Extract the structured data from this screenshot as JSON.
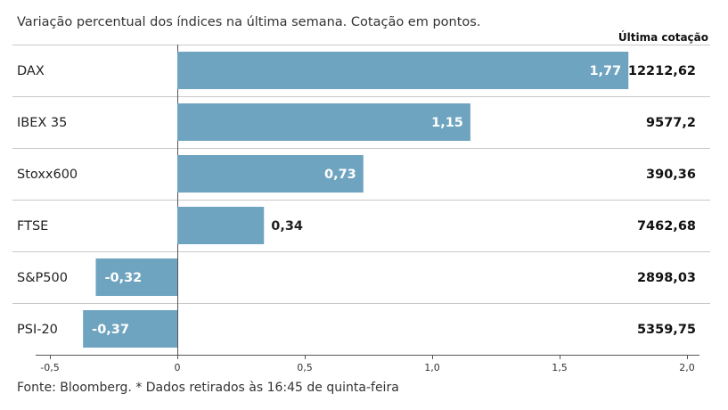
{
  "subtitle": "Variação percentual dos índices na última semana. Cotação em pontos.",
  "column_header": "Última cotação",
  "source": "Fonte: Bloomberg.  * Dados retirados às 16:45 de quinta-feira",
  "colors": {
    "bar": "#6ea4bf",
    "grid": "#c8c8c8",
    "axis": "#555555",
    "label_inside": "#ffffff",
    "label_outside": "#222222"
  },
  "chart_data": {
    "type": "bar",
    "orientation": "horizontal",
    "title": "",
    "xlabel": "",
    "ylabel": "",
    "xlim": [
      -0.5,
      2.0
    ],
    "grid": true,
    "categories": [
      "DAX",
      "IBEX 35",
      "Stoxx600",
      "FTSE",
      "S&P500",
      "PSI-20"
    ],
    "values": [
      1.77,
      1.15,
      0.73,
      0.34,
      -0.32,
      -0.37
    ],
    "value_labels": [
      "1,77",
      "1,15",
      "0,73",
      "0,34",
      "-0,32",
      "-0,37"
    ],
    "last_quote": [
      "12212,62",
      "9577,2",
      "390,36",
      "7462,68",
      "2898,03",
      "5359,75"
    ],
    "ticks": [
      -0.5,
      0,
      0.5,
      1.0,
      1.5,
      2.0
    ],
    "tick_labels": [
      "-0,5",
      "0",
      "0,5",
      "1,0",
      "1,5",
      "2,0"
    ]
  }
}
